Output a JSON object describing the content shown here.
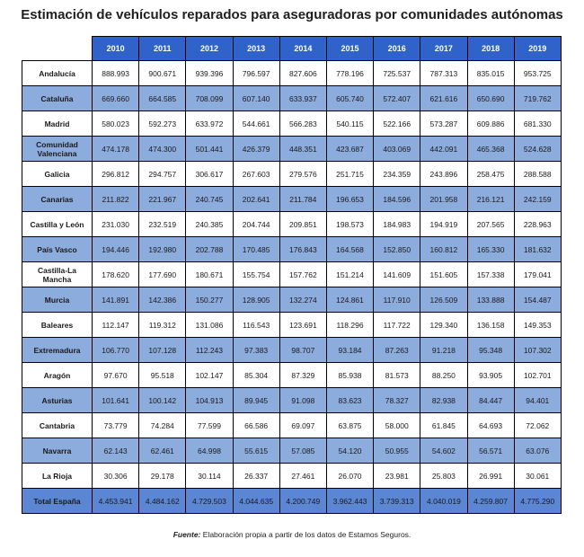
{
  "title": "Estimación de vehículos reparados para aseguradoras por comunidades autónomas",
  "table": {
    "years": [
      "2010",
      "2011",
      "2012",
      "2013",
      "2014",
      "2015",
      "2016",
      "2017",
      "2018",
      "2019"
    ],
    "rows": [
      {
        "region": "Andalucía",
        "values": [
          "888.993",
          "900.671",
          "939.396",
          "796.597",
          "827.606",
          "778.196",
          "725.537",
          "787.313",
          "835.015",
          "953.725"
        ]
      },
      {
        "region": "Cataluña",
        "values": [
          "669.660",
          "664.585",
          "708.099",
          "607.140",
          "633.937",
          "605.740",
          "572.407",
          "621.616",
          "650.690",
          "719.762"
        ]
      },
      {
        "region": "Madrid",
        "values": [
          "580.023",
          "592.273",
          "633.972",
          "544.661",
          "566.283",
          "540.115",
          "522.166",
          "573.287",
          "609.886",
          "681.330"
        ]
      },
      {
        "region": "Comunidad Valenciana",
        "values": [
          "474.178",
          "474.300",
          "501.441",
          "426.379",
          "448.351",
          "423.687",
          "403.069",
          "442.091",
          "465.368",
          "524.628"
        ]
      },
      {
        "region": "Galicia",
        "values": [
          "296.812",
          "294.757",
          "306.617",
          "267.603",
          "279.576",
          "251.715",
          "234.359",
          "243.896",
          "258.475",
          "288.588"
        ]
      },
      {
        "region": "Canarias",
        "values": [
          "211.822",
          "221.967",
          "240.745",
          "202.641",
          "211.784",
          "196.653",
          "184.596",
          "201.958",
          "216.121",
          "242.159"
        ]
      },
      {
        "region": "Castilla y León",
        "values": [
          "231.030",
          "232.519",
          "240.385",
          "204.744",
          "209.851",
          "198.573",
          "184.983",
          "194.919",
          "207.565",
          "228.963"
        ]
      },
      {
        "region": "País Vasco",
        "values": [
          "194.446",
          "192.980",
          "202.788",
          "170.485",
          "176.843",
          "164.568",
          "152.850",
          "160.812",
          "165.330",
          "181.632"
        ]
      },
      {
        "region": "Castilla-La Mancha",
        "values": [
          "178.620",
          "177.690",
          "180.671",
          "155.754",
          "157.762",
          "151.214",
          "141.609",
          "151.605",
          "157.338",
          "179.041"
        ]
      },
      {
        "region": "Murcia",
        "values": [
          "141.891",
          "142.386",
          "150.277",
          "128.905",
          "132.274",
          "124.861",
          "117.910",
          "126.509",
          "133.888",
          "154.487"
        ]
      },
      {
        "region": "Baleares",
        "values": [
          "112.147",
          "119.312",
          "131.086",
          "116.543",
          "123.691",
          "118.296",
          "117.722",
          "129.340",
          "136.158",
          "149.353"
        ]
      },
      {
        "region": "Extremadura",
        "values": [
          "106.770",
          "107.128",
          "112.243",
          "97.383",
          "98.707",
          "93.184",
          "87.263",
          "91.218",
          "95.348",
          "107.302"
        ]
      },
      {
        "region": "Aragón",
        "values": [
          "97.670",
          "95.518",
          "102.147",
          "85.304",
          "87.329",
          "85.938",
          "81.573",
          "88.250",
          "93.905",
          "102.701"
        ]
      },
      {
        "region": "Asturias",
        "values": [
          "101.641",
          "100.142",
          "104.913",
          "89.945",
          "91.098",
          "83.623",
          "78.327",
          "82.938",
          "84.447",
          "94.401"
        ]
      },
      {
        "region": "Cantabria",
        "values": [
          "73.779",
          "74.284",
          "77.599",
          "66.586",
          "69.097",
          "63.875",
          "58.000",
          "61.845",
          "64.693",
          "72.062"
        ]
      },
      {
        "region": "Navarra",
        "values": [
          "62.143",
          "62.461",
          "64.998",
          "55.615",
          "57.085",
          "54.120",
          "50.955",
          "54.602",
          "56.571",
          "63.076"
        ]
      },
      {
        "region": "La Rioja",
        "values": [
          "30.306",
          "29.178",
          "30.114",
          "26.337",
          "27.461",
          "26.070",
          "23.981",
          "25.803",
          "26.991",
          "30.061"
        ]
      }
    ],
    "total": {
      "region": "Total España",
      "values": [
        "4.453.941",
        "4.484.162",
        "4.729.503",
        "4.044.635",
        "4.200.749",
        "3.962.443",
        "3.739.313",
        "4.040.019",
        "4.259.807",
        "4.775.290"
      ]
    }
  },
  "source": {
    "label": "Fuente:",
    "text": "Elaboración propia a partir de los datos de Estamos Seguros."
  }
}
